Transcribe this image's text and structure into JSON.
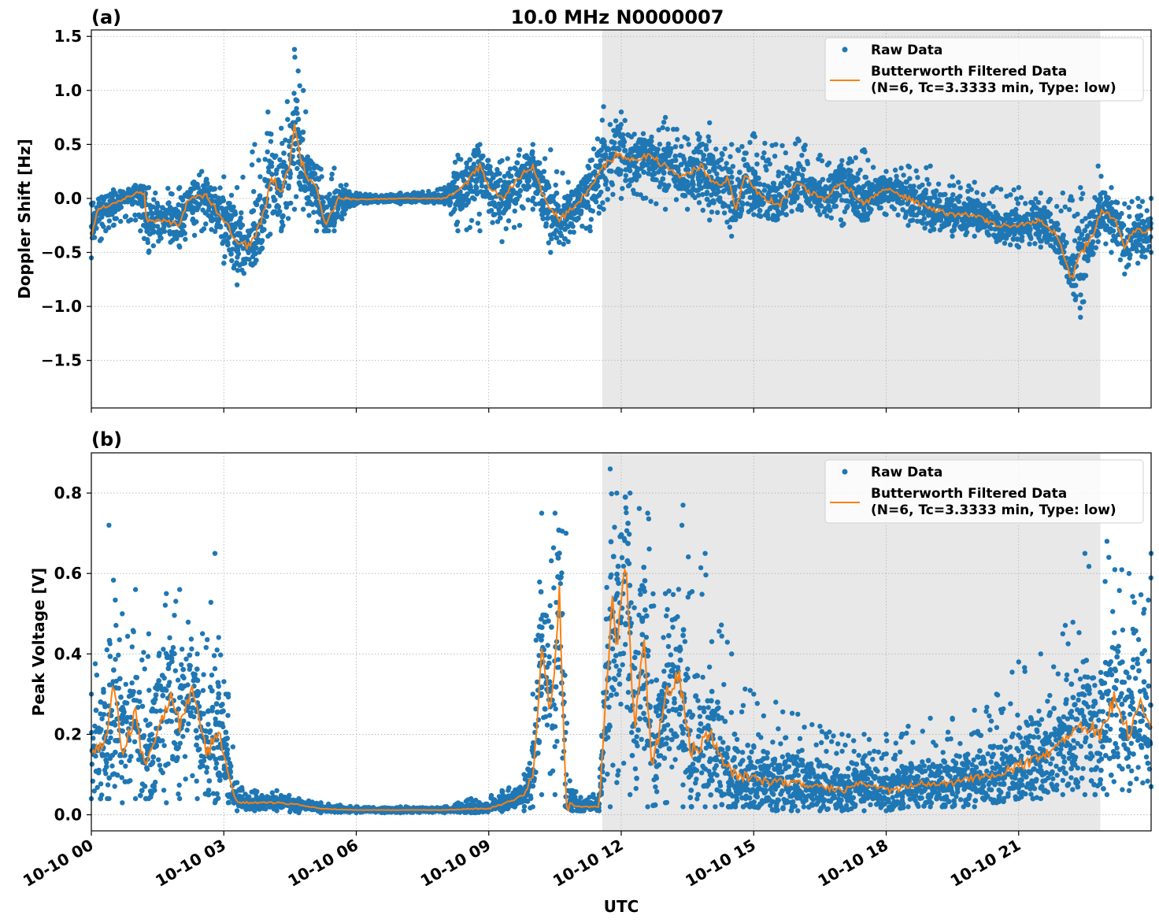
{
  "figure_title": "10.0 MHz N0000007",
  "colors": {
    "raw": "#1f77b4",
    "filtered": "#ff7f0e",
    "shade": "#e8e8e8",
    "grid": "#b0b0b0"
  },
  "shared_x": {
    "label": "UTC",
    "range_hours": [
      0,
      24
    ],
    "ticks_hours": [
      0,
      3,
      6,
      9,
      12,
      15,
      18,
      21
    ],
    "tick_labels": [
      "10-10 00",
      "10-10 03",
      "10-10 06",
      "10-10 09",
      "10-10 12",
      "10-10 15",
      "10-10 18",
      "10-10 21"
    ],
    "shaded_span_hours": [
      11.57,
      22.85
    ]
  },
  "legend": {
    "raw_label": "Raw Data",
    "filtered_label_line1": "Butterworth Filtered Data",
    "filtered_label_line2": "(N=6, Tc=3.3333 min, Type: low)",
    "placement": "top-right"
  },
  "chart_data": [
    {
      "type": "scatter",
      "panel_label": "(a)",
      "title": "10.0 MHz N0000007",
      "xlabel": "",
      "ylabel": "Doppler Shift [Hz]",
      "ylim": [
        -1.94,
        1.56
      ],
      "yticks": [
        1.5,
        1.0,
        0.5,
        0.0,
        -0.5,
        -1.0,
        -1.5
      ],
      "ytick_labels": [
        "1.5",
        "1.0",
        "0.5",
        "0.0",
        "−0.5",
        "−1.0",
        "−1.5"
      ],
      "grid": true,
      "series": [
        {
          "name": "Butterworth Filtered Data (N=6, Tc=3.3333 min, Type: low)",
          "kind": "line",
          "x_hours": [
            0,
            0.15,
            0.5,
            1.0,
            1.2,
            1.25,
            1.6,
            2.0,
            2.2,
            2.6,
            3.0,
            3.3,
            3.6,
            3.9,
            4.1,
            4.3,
            4.5,
            4.6,
            4.75,
            4.9,
            5.1,
            5.3,
            5.6,
            6.0,
            7.0,
            8.0,
            8.4,
            8.8,
            9.0,
            9.3,
            9.7,
            10.0,
            10.3,
            10.6,
            11.0,
            11.3,
            11.6,
            11.9,
            12.2,
            12.6,
            13.0,
            13.4,
            13.8,
            14.2,
            14.4,
            14.6,
            14.8,
            15.2,
            15.6,
            16.0,
            16.3,
            16.6,
            17.0,
            17.5,
            18.0,
            18.5,
            19.0,
            19.5,
            20.0,
            20.5,
            21.0,
            21.5,
            21.9,
            22.2,
            22.4,
            22.6,
            22.9,
            23.2,
            23.4,
            23.6,
            24.0
          ],
          "y": [
            -0.35,
            -0.1,
            -0.05,
            0.05,
            0.05,
            -0.2,
            -0.2,
            -0.25,
            0.0,
            0.02,
            -0.2,
            -0.4,
            -0.45,
            -0.15,
            0.2,
            0.05,
            0.3,
            0.75,
            0.35,
            0.2,
            0.1,
            -0.25,
            0.0,
            -0.01,
            0.0,
            0.0,
            0.1,
            0.3,
            0.1,
            0.0,
            0.2,
            0.3,
            -0.05,
            -0.2,
            -0.05,
            0.1,
            0.3,
            0.4,
            0.35,
            0.4,
            0.3,
            0.2,
            0.3,
            0.1,
            0.2,
            -0.1,
            0.2,
            0.0,
            -0.05,
            0.15,
            0.05,
            0.0,
            0.15,
            -0.05,
            0.1,
            0.0,
            -0.1,
            -0.15,
            -0.15,
            -0.25,
            -0.25,
            -0.2,
            -0.35,
            -0.75,
            -0.5,
            -0.4,
            -0.1,
            -0.2,
            -0.45,
            -0.3,
            -0.3
          ]
        },
        {
          "name": "Raw Data",
          "kind": "points",
          "x_hours": [
            0,
            0.5,
            1.0,
            1.3,
            2.0,
            2.5,
            3.0,
            3.3,
            3.7,
            4.0,
            4.3,
            4.6,
            4.8,
            5.1,
            5.5,
            6.0,
            7.0,
            8.0,
            8.3,
            8.8,
            9.3,
            9.7,
            10.0,
            10.4,
            10.8,
            11.3,
            11.6,
            12.0,
            12.5,
            13.0,
            13.5,
            14.0,
            14.5,
            15.0,
            15.5,
            16.0,
            16.5,
            17.0,
            17.5,
            18.0,
            18.5,
            19.0,
            19.5,
            20.0,
            20.5,
            21.0,
            21.5,
            22.0,
            22.4,
            22.8,
            23.1,
            23.4,
            23.7,
            24.0
          ],
          "upper": [
            -0.05,
            0.08,
            0.12,
            0.1,
            0.1,
            0.25,
            0.2,
            0.1,
            0.5,
            0.8,
            0.65,
            1.38,
            1.0,
            0.3,
            0.28,
            0.05,
            0.05,
            0.1,
            0.4,
            0.5,
            0.35,
            0.45,
            0.5,
            0.45,
            0.15,
            0.35,
            0.85,
            0.8,
            0.6,
            0.75,
            0.55,
            0.7,
            0.5,
            0.6,
            0.5,
            0.55,
            0.4,
            0.35,
            0.45,
            0.25,
            0.3,
            0.3,
            0.2,
            0.15,
            0.1,
            0.1,
            0.05,
            0.05,
            0.1,
            0.3,
            0.1,
            -0.05,
            0.0,
            0.0
          ],
          "lower": [
            -0.55,
            -0.25,
            -0.2,
            -0.5,
            -0.45,
            -0.3,
            -0.6,
            -0.8,
            -0.6,
            -0.35,
            -0.3,
            -0.1,
            -0.1,
            -0.3,
            -0.3,
            -0.05,
            -0.05,
            -0.05,
            -0.3,
            -0.3,
            -0.4,
            -0.25,
            -0.1,
            -0.5,
            -0.4,
            -0.3,
            -0.1,
            0.0,
            0.0,
            -0.1,
            -0.1,
            -0.2,
            -0.35,
            -0.15,
            -0.2,
            -0.1,
            -0.15,
            -0.25,
            -0.2,
            -0.15,
            -0.25,
            -0.3,
            -0.35,
            -0.35,
            -0.4,
            -0.45,
            -0.45,
            -0.6,
            -1.1,
            -0.4,
            -0.5,
            -0.7,
            -0.6,
            -0.5
          ]
        }
      ]
    },
    {
      "type": "scatter",
      "panel_label": "(b)",
      "title": "",
      "xlabel": "UTC",
      "ylabel": "Peak Voltage [V]",
      "ylim": [
        -0.04,
        0.9
      ],
      "yticks": [
        0.8,
        0.6,
        0.4,
        0.2,
        0.0
      ],
      "ytick_labels": [
        "0.8",
        "0.6",
        "0.4",
        "0.2",
        "0.0"
      ],
      "grid": true,
      "series": [
        {
          "name": "Butterworth Filtered Data (N=6, Tc=3.3333 min, Type: low)",
          "kind": "line",
          "x_hours": [
            0,
            0.3,
            0.5,
            0.7,
            1.0,
            1.2,
            1.5,
            1.8,
            2.0,
            2.3,
            2.6,
            2.9,
            3.1,
            3.3,
            3.7,
            4.2,
            4.7,
            5.2,
            6.0,
            7.0,
            8.0,
            8.6,
            9.0,
            9.4,
            9.8,
            10.0,
            10.2,
            10.4,
            10.6,
            10.75,
            11.0,
            11.5,
            11.8,
            11.9,
            12.1,
            12.3,
            12.5,
            12.7,
            13.0,
            13.3,
            13.6,
            14.0,
            14.5,
            15.0,
            15.5,
            16.0,
            16.5,
            17.0,
            17.5,
            18.0,
            18.5,
            19.0,
            19.5,
            20.0,
            20.5,
            21.0,
            21.5,
            22.0,
            22.5,
            22.9,
            23.2,
            23.5,
            23.8,
            24.0
          ],
          "y": [
            0.15,
            0.17,
            0.33,
            0.15,
            0.25,
            0.12,
            0.2,
            0.3,
            0.22,
            0.32,
            0.15,
            0.2,
            0.1,
            0.03,
            0.03,
            0.03,
            0.025,
            0.015,
            0.012,
            0.012,
            0.012,
            0.015,
            0.015,
            0.03,
            0.05,
            0.1,
            0.4,
            0.25,
            0.55,
            0.03,
            0.02,
            0.02,
            0.55,
            0.4,
            0.65,
            0.2,
            0.45,
            0.1,
            0.3,
            0.35,
            0.15,
            0.2,
            0.1,
            0.09,
            0.08,
            0.08,
            0.07,
            0.06,
            0.08,
            0.06,
            0.07,
            0.08,
            0.08,
            0.09,
            0.1,
            0.12,
            0.14,
            0.18,
            0.22,
            0.2,
            0.3,
            0.2,
            0.28,
            0.22
          ]
        },
        {
          "name": "Raw Data",
          "kind": "points",
          "x_hours": [
            0,
            0.4,
            0.7,
            1.0,
            1.3,
            1.7,
            2.0,
            2.4,
            2.8,
            3.1,
            3.3,
            3.7,
            4.2,
            4.7,
            5.2,
            6.0,
            7.0,
            8.0,
            8.6,
            9.3,
            9.8,
            10.0,
            10.2,
            10.5,
            10.75,
            10.9,
            11.5,
            11.75,
            11.9,
            12.2,
            12.6,
            13.0,
            13.4,
            13.9,
            14.5,
            15.0,
            15.5,
            16.0,
            16.5,
            17.0,
            17.5,
            18.0,
            18.5,
            19.0,
            19.5,
            20.0,
            20.5,
            21.0,
            21.5,
            22.0,
            22.5,
            23.0,
            23.5,
            24.0
          ],
          "upper": [
            0.3,
            0.72,
            0.5,
            0.56,
            0.45,
            0.55,
            0.56,
            0.4,
            0.65,
            0.3,
            0.08,
            0.06,
            0.06,
            0.04,
            0.03,
            0.02,
            0.02,
            0.02,
            0.04,
            0.06,
            0.1,
            0.3,
            0.75,
            0.75,
            0.7,
            0.06,
            0.05,
            0.86,
            0.8,
            0.8,
            0.75,
            0.55,
            0.77,
            0.65,
            0.4,
            0.3,
            0.28,
            0.25,
            0.22,
            0.2,
            0.2,
            0.2,
            0.22,
            0.24,
            0.24,
            0.26,
            0.3,
            0.38,
            0.4,
            0.45,
            0.65,
            0.68,
            0.6,
            0.65
          ],
          "lower": [
            0.04,
            0.04,
            0.03,
            0.04,
            0.04,
            0.03,
            0.04,
            0.04,
            0.03,
            0.03,
            0.01,
            0.01,
            0.01,
            0.005,
            0.005,
            0.005,
            0.005,
            0.005,
            0.005,
            0.008,
            0.01,
            0.02,
            0.05,
            0.05,
            0.02,
            0.01,
            0.01,
            0.02,
            0.08,
            0.05,
            0.02,
            0.03,
            0.02,
            0.02,
            0.02,
            0.02,
            0.01,
            0.01,
            0.01,
            0.01,
            0.01,
            0.01,
            0.02,
            0.02,
            0.02,
            0.02,
            0.03,
            0.04,
            0.04,
            0.05,
            0.05,
            0.05,
            0.06,
            0.07
          ]
        }
      ]
    }
  ]
}
